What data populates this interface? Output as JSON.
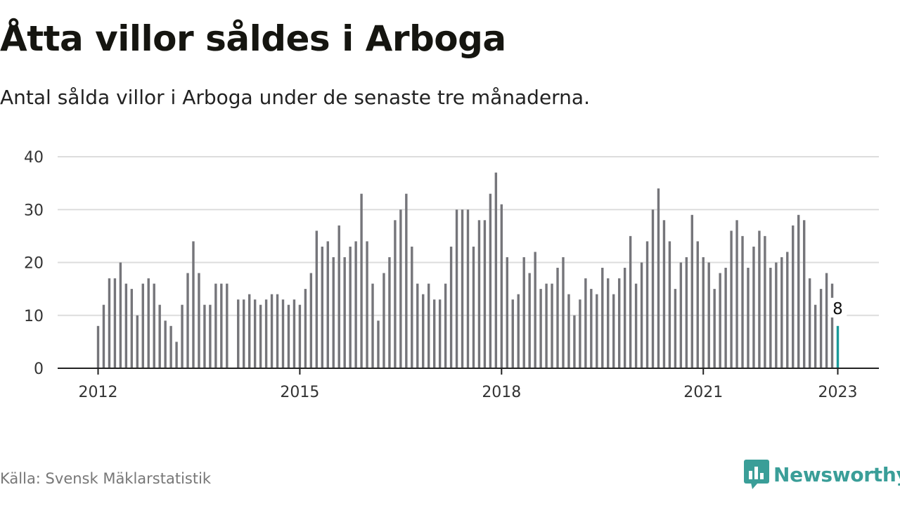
{
  "title": "Åtta villor såldes i Arboga",
  "subtitle": "Antal sålda villor i Arboga under de senaste tre månaderna.",
  "source": "Källa: Svensk Mäklarstatistik",
  "brand": "Newsworthy",
  "colors": {
    "bar": "#75757a",
    "highlight": "#1a9a9a",
    "grid": "#dddddd",
    "axis": "#222222",
    "brand": "#3a9e98"
  },
  "chart_data": {
    "type": "bar",
    "x_start": "2012-01",
    "x_end": "2023-01",
    "x_interval": "month",
    "xticks": [
      "2012",
      "2015",
      "2018",
      "2021",
      "2023"
    ],
    "ylim": [
      0,
      40
    ],
    "yticks": [
      0,
      10,
      20,
      30,
      40
    ],
    "grid": true,
    "values": [
      8,
      12,
      17,
      17,
      20,
      16,
      15,
      10,
      16,
      17,
      16,
      12,
      9,
      8,
      5,
      12,
      18,
      24,
      18,
      12,
      12,
      16,
      16,
      16,
      null,
      13,
      13,
      14,
      13,
      12,
      13,
      14,
      14,
      13,
      12,
      13,
      12,
      15,
      18,
      26,
      23,
      24,
      21,
      27,
      21,
      23,
      24,
      33,
      24,
      16,
      9,
      18,
      21,
      28,
      30,
      33,
      23,
      16,
      14,
      16,
      13,
      13,
      16,
      23,
      30,
      30,
      30,
      23,
      28,
      28,
      33,
      37,
      31,
      21,
      13,
      14,
      21,
      18,
      22,
      15,
      16,
      16,
      19,
      21,
      14,
      10,
      13,
      17,
      15,
      14,
      19,
      17,
      14,
      17,
      19,
      25,
      16,
      20,
      24,
      30,
      34,
      28,
      24,
      15,
      20,
      21,
      29,
      24,
      21,
      20,
      15,
      18,
      19,
      26,
      28,
      25,
      19,
      23,
      26,
      25,
      19,
      20,
      21,
      22,
      27,
      29,
      28,
      17,
      12,
      15,
      18,
      16,
      8
    ],
    "highlight": {
      "label": "8",
      "value": 8
    }
  }
}
